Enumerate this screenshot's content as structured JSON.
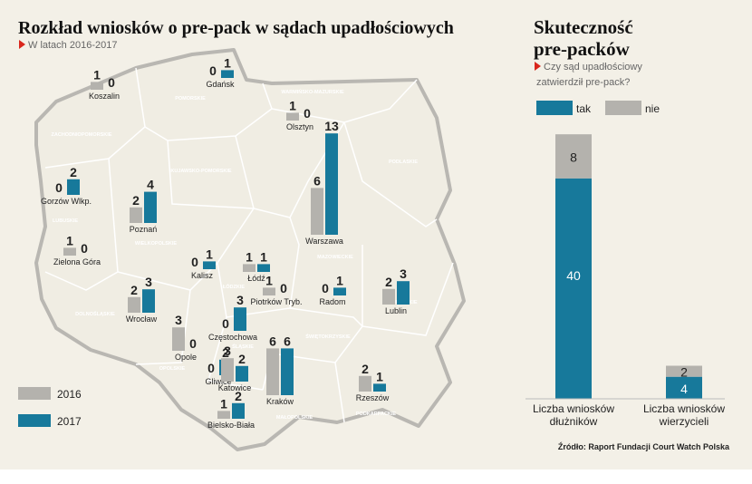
{
  "title": "Rozkład wniosków o pre-pack w sądach upadłościowych",
  "subtitle": "W latach 2016-2017",
  "legend": [
    {
      "name": "2016",
      "color": "#b4b2ad"
    },
    {
      "name": "2017",
      "color": "#17799b"
    }
  ],
  "regions": [
    "POMORSKIE",
    "WARMIŃSKO-MAZURSKIE",
    "ZACHODNIOPOMORSKIE",
    "PODLASKIE",
    "KUJAWSKO-POMORSKIE",
    "LUBUSKIE",
    "WIELKOPOLSKIE",
    "MAZOWIECKIE",
    "ŁÓDZKIE",
    "DOLNOŚLĄSKIE",
    "LUBELSKIE",
    "OPOLSKIE",
    "ŚLĄSKIE",
    "ŚWIĘTOKRZYSKIE",
    "MAŁOPOLSKIE",
    "PODKARPACKIE"
  ],
  "courts": [
    {
      "name": "Koszalin",
      "values": [
        1,
        0
      ]
    },
    {
      "name": "Gdańsk",
      "values": [
        0,
        1
      ]
    },
    {
      "name": "Olsztyn",
      "values": [
        1,
        0
      ]
    },
    {
      "name": "Gorzów Wlkp.",
      "values": [
        0,
        2
      ]
    },
    {
      "name": "Poznań",
      "values": [
        2,
        4
      ]
    },
    {
      "name": "Warszawa",
      "values": [
        6,
        13
      ]
    },
    {
      "name": "Zielona Góra",
      "values": [
        1,
        0
      ]
    },
    {
      "name": "Kalisz",
      "values": [
        0,
        1
      ]
    },
    {
      "name": "Łódź",
      "values": [
        1,
        1
      ]
    },
    {
      "name": "Piotrków Tryb.",
      "values": [
        1,
        0
      ]
    },
    {
      "name": "Radom",
      "values": [
        0,
        1
      ]
    },
    {
      "name": "Lublin",
      "values": [
        2,
        3
      ]
    },
    {
      "name": "Wrocław",
      "values": [
        2,
        3
      ]
    },
    {
      "name": "Częstochowa",
      "values": [
        0,
        3
      ]
    },
    {
      "name": "Opole",
      "values": [
        3,
        0
      ]
    },
    {
      "name": "Gliwice",
      "values": [
        0,
        2
      ]
    },
    {
      "name": "Katowice",
      "values": [
        3,
        2
      ]
    },
    {
      "name": "Kraków",
      "values": [
        6,
        6
      ]
    },
    {
      "name": "Rzeszów",
      "values": [
        2,
        1
      ]
    },
    {
      "name": "Bielsko-Biała",
      "values": [
        1,
        2
      ]
    }
  ],
  "side": {
    "title": [
      "Skuteczność",
      "pre-packów"
    ],
    "subtitle": [
      "Czy sąd upadłościowy",
      "zatwierdził pre-pack?"
    ],
    "legend": [
      {
        "name": "tak",
        "color": "#17799b"
      },
      {
        "name": "nie",
        "color": "#b4b2ad"
      }
    ],
    "bars": [
      {
        "label": [
          "Liczba wniosków",
          "dłużników"
        ],
        "tak": 40,
        "nie": 8
      },
      {
        "label": [
          "Liczba wniosków",
          "wierzycieli"
        ],
        "tak": 4,
        "nie": 2
      }
    ]
  },
  "source": "Źródło: Raport Fundacji Court Watch Polska"
}
